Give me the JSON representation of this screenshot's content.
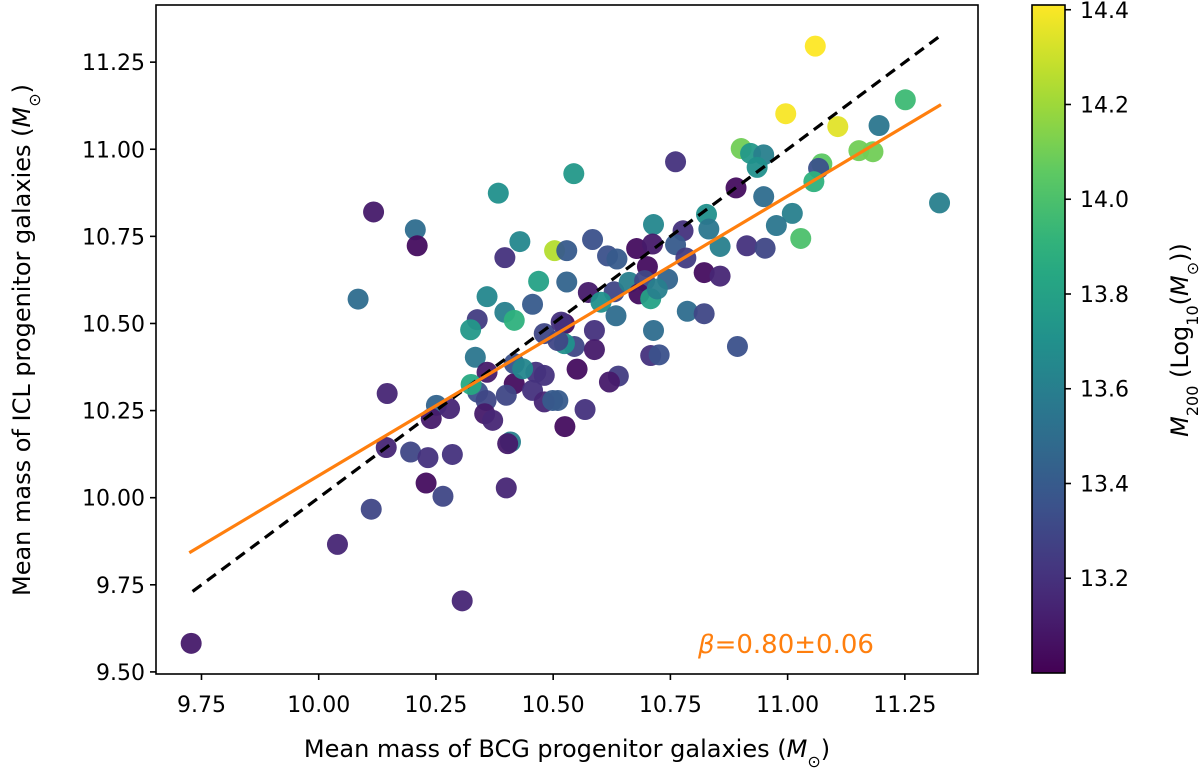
{
  "chart_data": {
    "type": "scatter",
    "title": "",
    "xlabel": "Mean mass of BCG progenitor galaxies",
    "xlabel_unit": "M",
    "ylabel": "Mean mass of ICL progenitor galaxies",
    "ylabel_unit": "M",
    "unit_subscript": "⊙",
    "xlim": [
      9.653,
      11.406
    ],
    "ylim": [
      9.494,
      11.414
    ],
    "xticks": [
      "9.75",
      "10.00",
      "10.25",
      "10.50",
      "10.75",
      "11.00",
      "11.25"
    ],
    "yticks": [
      "9.50",
      "9.75",
      "10.00",
      "10.25",
      "10.50",
      "10.75",
      "11.00",
      "11.25"
    ],
    "grid": false,
    "colormap": "viridis",
    "colorbar": {
      "label_main": "M",
      "label_sub": "200",
      "label_rest": " (Log",
      "label_rest_sub": "10",
      "label_unit": "(M",
      "label_unit_sub": "⊙",
      "label_close": "))",
      "range": [
        13.0,
        14.41
      ],
      "ticks": [
        "13.2",
        "13.4",
        "13.6",
        "13.8",
        "14.0",
        "14.2",
        "14.4"
      ]
    },
    "lines": [
      {
        "style": "dashed",
        "color": "#000000",
        "x": [
          9.731,
          11.324
        ],
        "y": [
          9.731,
          11.324
        ]
      },
      {
        "style": "solid",
        "color": "#ff7f0e",
        "x": [
          9.724,
          11.327
        ],
        "y": [
          9.842,
          11.128
        ]
      }
    ],
    "annotation": {
      "symbol": "β",
      "text": "=0.80±0.06",
      "color": "#ff7f0e"
    },
    "points_format": [
      "x",
      "y",
      "M200"
    ],
    "points": [
      [
        10.117,
        10.82,
        13.1
      ],
      [
        10.206,
        10.769,
        13.5
      ],
      [
        10.21,
        10.723,
        13.05
      ],
      [
        10.084,
        10.57,
        13.5
      ],
      [
        10.383,
        10.874,
        13.7
      ],
      [
        10.429,
        10.735,
        13.65
      ],
      [
        10.397,
        10.689,
        13.2
      ],
      [
        10.503,
        10.709,
        14.25
      ],
      [
        10.529,
        10.709,
        13.4
      ],
      [
        10.469,
        10.621,
        13.8
      ],
      [
        10.529,
        10.619,
        13.45
      ],
      [
        10.359,
        10.577,
        13.65
      ],
      [
        10.456,
        10.555,
        13.4
      ],
      [
        10.397,
        10.532,
        13.6
      ],
      [
        10.417,
        10.509,
        13.9
      ],
      [
        10.338,
        10.511,
        13.25
      ],
      [
        10.324,
        10.482,
        13.75
      ],
      [
        10.544,
        10.93,
        13.75
      ],
      [
        11.059,
        11.296,
        14.42
      ],
      [
        10.996,
        11.102,
        14.4
      ],
      [
        11.107,
        11.065,
        14.35
      ],
      [
        11.251,
        11.142,
        13.95
      ],
      [
        11.195,
        11.068,
        13.55
      ],
      [
        11.152,
        10.996,
        14.1
      ],
      [
        11.182,
        10.993,
        14.1
      ],
      [
        11.324,
        10.846,
        13.6
      ],
      [
        10.901,
        11.002,
        14.1
      ],
      [
        10.921,
        10.988,
        13.75
      ],
      [
        10.949,
        10.984,
        13.6
      ],
      [
        10.935,
        10.948,
        13.7
      ],
      [
        10.761,
        10.964,
        13.2
      ],
      [
        10.89,
        10.889,
        13.05
      ],
      [
        10.949,
        10.864,
        13.5
      ],
      [
        11.01,
        10.816,
        13.6
      ],
      [
        10.976,
        10.781,
        13.55
      ],
      [
        11.028,
        10.744,
        14.0
      ],
      [
        10.913,
        10.723,
        13.2
      ],
      [
        10.952,
        10.716,
        13.3
      ],
      [
        11.073,
        10.958,
        14.05
      ],
      [
        11.066,
        10.945,
        13.35
      ],
      [
        11.056,
        10.907,
        13.9
      ],
      [
        10.714,
        10.784,
        13.65
      ],
      [
        10.827,
        10.813,
        13.7
      ],
      [
        10.832,
        10.771,
        13.55
      ],
      [
        10.777,
        10.766,
        13.2
      ],
      [
        10.856,
        10.721,
        13.6
      ],
      [
        10.584,
        10.741,
        13.35
      ],
      [
        10.616,
        10.694,
        13.35
      ],
      [
        10.636,
        10.685,
        13.4
      ],
      [
        10.678,
        10.715,
        13.05
      ],
      [
        10.712,
        10.728,
        13.1
      ],
      [
        10.761,
        10.726,
        13.4
      ],
      [
        10.701,
        10.663,
        13.05
      ],
      [
        10.783,
        10.688,
        13.25
      ],
      [
        10.822,
        10.646,
        13.05
      ],
      [
        10.856,
        10.636,
        13.15
      ],
      [
        10.575,
        10.589,
        13.1
      ],
      [
        10.63,
        10.591,
        13.3
      ],
      [
        10.662,
        10.618,
        13.6
      ],
      [
        10.695,
        10.623,
        13.3
      ],
      [
        10.744,
        10.627,
        13.45
      ],
      [
        10.683,
        10.585,
        13.05
      ],
      [
        10.708,
        10.571,
        13.8
      ],
      [
        10.722,
        10.599,
        13.6
      ],
      [
        10.602,
        10.561,
        13.7
      ],
      [
        10.634,
        10.522,
        13.5
      ],
      [
        10.786,
        10.535,
        13.5
      ],
      [
        10.822,
        10.528,
        13.3
      ],
      [
        10.588,
        10.48,
        13.2
      ],
      [
        10.714,
        10.48,
        13.5
      ],
      [
        10.524,
        10.499,
        13.05
      ],
      [
        10.893,
        10.434,
        13.35
      ],
      [
        10.545,
        10.434,
        13.3
      ],
      [
        10.524,
        10.442,
        13.7
      ],
      [
        10.588,
        10.425,
        13.1
      ],
      [
        10.708,
        10.408,
        13.2
      ],
      [
        10.726,
        10.41,
        13.35
      ],
      [
        10.551,
        10.369,
        13.05
      ],
      [
        10.639,
        10.349,
        13.25
      ],
      [
        10.62,
        10.332,
        13.1
      ],
      [
        10.51,
        10.279,
        13.4
      ],
      [
        10.568,
        10.253,
        13.2
      ],
      [
        10.525,
        10.204,
        13.05
      ],
      [
        10.146,
        10.299,
        13.15
      ],
      [
        10.144,
        10.144,
        13.15
      ],
      [
        10.196,
        10.131,
        13.3
      ],
      [
        10.233,
        10.115,
        13.2
      ],
      [
        10.285,
        10.124,
        13.2
      ],
      [
        10.229,
        10.042,
        13.05
      ],
      [
        10.265,
        10.004,
        13.3
      ],
      [
        10.112,
        9.967,
        13.3
      ],
      [
        10.04,
        9.866,
        13.15
      ],
      [
        10.306,
        9.704,
        13.15
      ],
      [
        9.728,
        9.582,
        13.1
      ],
      [
        10.4,
        10.028,
        13.15
      ],
      [
        10.409,
        10.16,
        13.6
      ],
      [
        10.403,
        10.155,
        13.1
      ],
      [
        10.251,
        10.265,
        13.45
      ],
      [
        10.279,
        10.256,
        13.15
      ],
      [
        10.24,
        10.227,
        13.1
      ],
      [
        10.334,
        10.403,
        13.55
      ],
      [
        10.359,
        10.36,
        13.1
      ],
      [
        10.417,
        10.327,
        13.05
      ],
      [
        10.4,
        10.294,
        13.3
      ],
      [
        10.339,
        10.303,
        13.35
      ],
      [
        10.357,
        10.279,
        13.3
      ],
      [
        10.354,
        10.241,
        13.1
      ],
      [
        10.371,
        10.222,
        13.15
      ],
      [
        10.463,
        10.36,
        13.2
      ],
      [
        10.481,
        10.351,
        13.2
      ],
      [
        10.456,
        10.308,
        13.2
      ],
      [
        10.481,
        10.275,
        13.15
      ],
      [
        10.499,
        10.279,
        13.4
      ],
      [
        10.417,
        10.385,
        13.35
      ],
      [
        10.51,
        10.451,
        13.3
      ],
      [
        10.481,
        10.471,
        13.3
      ],
      [
        10.435,
        10.37,
        13.65
      ],
      [
        10.517,
        10.504,
        13.2
      ],
      [
        10.325,
        10.325,
        13.85
      ]
    ]
  }
}
